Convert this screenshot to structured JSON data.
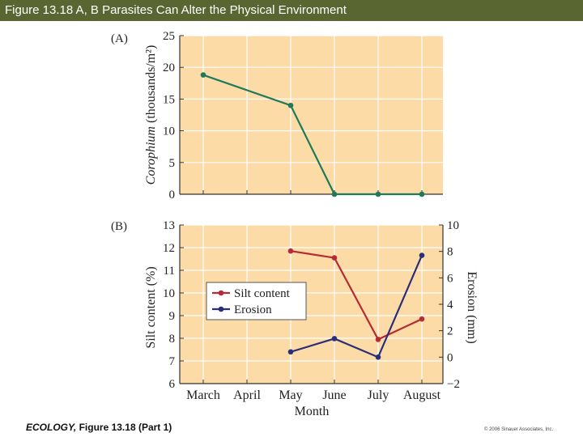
{
  "header": {
    "title": "Figure 13.18 A, B  Parasites Can Alter the Physical Environment"
  },
  "footer": {
    "book": "ECOLOGY,",
    "figure": " Figure 13.18 (Part 1)",
    "copyright": "© 2006 Sinauer Associates, Inc."
  },
  "colors": {
    "title_bar": "#5a6631",
    "plot_bg": "#fddba6",
    "grid": "#ffffff",
    "corophium": "#1e7a5a",
    "silt": "#b52b36",
    "erosion": "#2b2e78"
  },
  "chart_data": [
    {
      "panel": "(A)",
      "type": "line",
      "categories": [
        "March",
        "April",
        "May",
        "June",
        "July",
        "August"
      ],
      "ylabel_italic": "Corophium",
      "ylabel_rest": "(thousands/m²)",
      "ylim": [
        0,
        25
      ],
      "yticks": [
        "0",
        "5",
        "10",
        "15",
        "20",
        "25"
      ],
      "grid": true,
      "series": [
        {
          "x": [
            "March",
            "May",
            "June",
            "July",
            "August"
          ],
          "values": [
            18.8,
            14,
            0,
            0,
            0
          ]
        }
      ]
    },
    {
      "panel": "(B)",
      "type": "line",
      "categories": [
        "March",
        "April",
        "May",
        "June",
        "July",
        "August"
      ],
      "xlabel": "Month",
      "ylabel": "Silt content (%)",
      "ylim": [
        6,
        13
      ],
      "yticks": [
        "6",
        "7",
        "8",
        "9",
        "10",
        "11",
        "12",
        "13"
      ],
      "y2label": "Erosion (mm)",
      "y2lim": [
        -2,
        10
      ],
      "y2ticks": [
        "−2",
        "0",
        "2",
        "4",
        "6",
        "8",
        "10"
      ],
      "grid": true,
      "legend_position": "center-left",
      "series": [
        {
          "name": "Silt content",
          "axis": "left",
          "x": [
            "May",
            "June",
            "July",
            "August"
          ],
          "values": [
            11.85,
            11.55,
            7.95,
            8.85
          ]
        },
        {
          "name": "Erosion",
          "axis": "right",
          "x": [
            "May",
            "June",
            "July",
            "August"
          ],
          "values": [
            0.4,
            1.4,
            0,
            7.7
          ]
        }
      ]
    }
  ]
}
